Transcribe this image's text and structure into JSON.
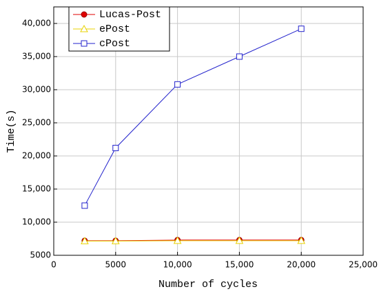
{
  "chart_data": {
    "type": "line",
    "x_label": "Number of cycles",
    "y_label": "Time(s)",
    "x": [
      2500,
      5000,
      10000,
      15000,
      20000
    ],
    "series": [
      {
        "name": "Lucas-Post",
        "color": "#e00000",
        "marker": "circle",
        "values": [
          7200,
          7200,
          7300,
          7300,
          7300
        ]
      },
      {
        "name": "ePost",
        "color": "#e8d200",
        "marker": "triangle",
        "values": [
          7150,
          7150,
          7200,
          7200,
          7200
        ]
      },
      {
        "name": "cPost",
        "color": "#2222cc",
        "marker": "square",
        "values": [
          12500,
          21200,
          30800,
          35000,
          39200
        ]
      }
    ],
    "xlim": [
      0,
      25000
    ],
    "ylim": [
      5000,
      42500
    ],
    "xticks": [
      0,
      5000,
      {
        "value": 10000,
        "label": "10,000"
      },
      {
        "value": 15000,
        "label": "15,000"
      },
      {
        "value": 20000,
        "label": "20,000"
      },
      {
        "value": 25000,
        "label": "25,000"
      }
    ],
    "yticks": [
      5000,
      {
        "value": 10000,
        "label": "10,000"
      },
      {
        "value": 15000,
        "label": "15,000"
      },
      {
        "value": 20000,
        "label": "20,000"
      },
      {
        "value": 25000,
        "label": "25,000"
      },
      {
        "value": 30000,
        "label": "30,000"
      },
      {
        "value": 35000,
        "label": "35,000"
      },
      {
        "value": 40000,
        "label": "40,000"
      }
    ],
    "grid": true,
    "legend": "top-left"
  }
}
